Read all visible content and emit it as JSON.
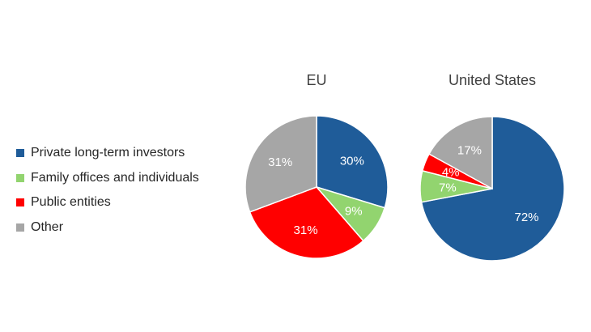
{
  "chart_data": {
    "type": "pie",
    "legend_position": "left",
    "categories": [
      "Private long-term investors",
      "Family offices and individuals",
      "Public entities",
      "Other"
    ],
    "colors": [
      "#1f5c99",
      "#92d46f",
      "#ff0000",
      "#a6a6a6"
    ],
    "label_colors": [
      "#ffffff",
      "#ffffff",
      "#ffffff",
      "#ffffff"
    ],
    "pies": [
      {
        "title": "EU",
        "values": [
          30,
          9,
          31,
          31
        ],
        "labels": [
          "30%",
          "9%",
          "31%",
          "31%"
        ]
      },
      {
        "title": "United States",
        "values": [
          72,
          7,
          4,
          17
        ],
        "labels": [
          "72%",
          "7%",
          "4%",
          "17%"
        ]
      }
    ]
  }
}
